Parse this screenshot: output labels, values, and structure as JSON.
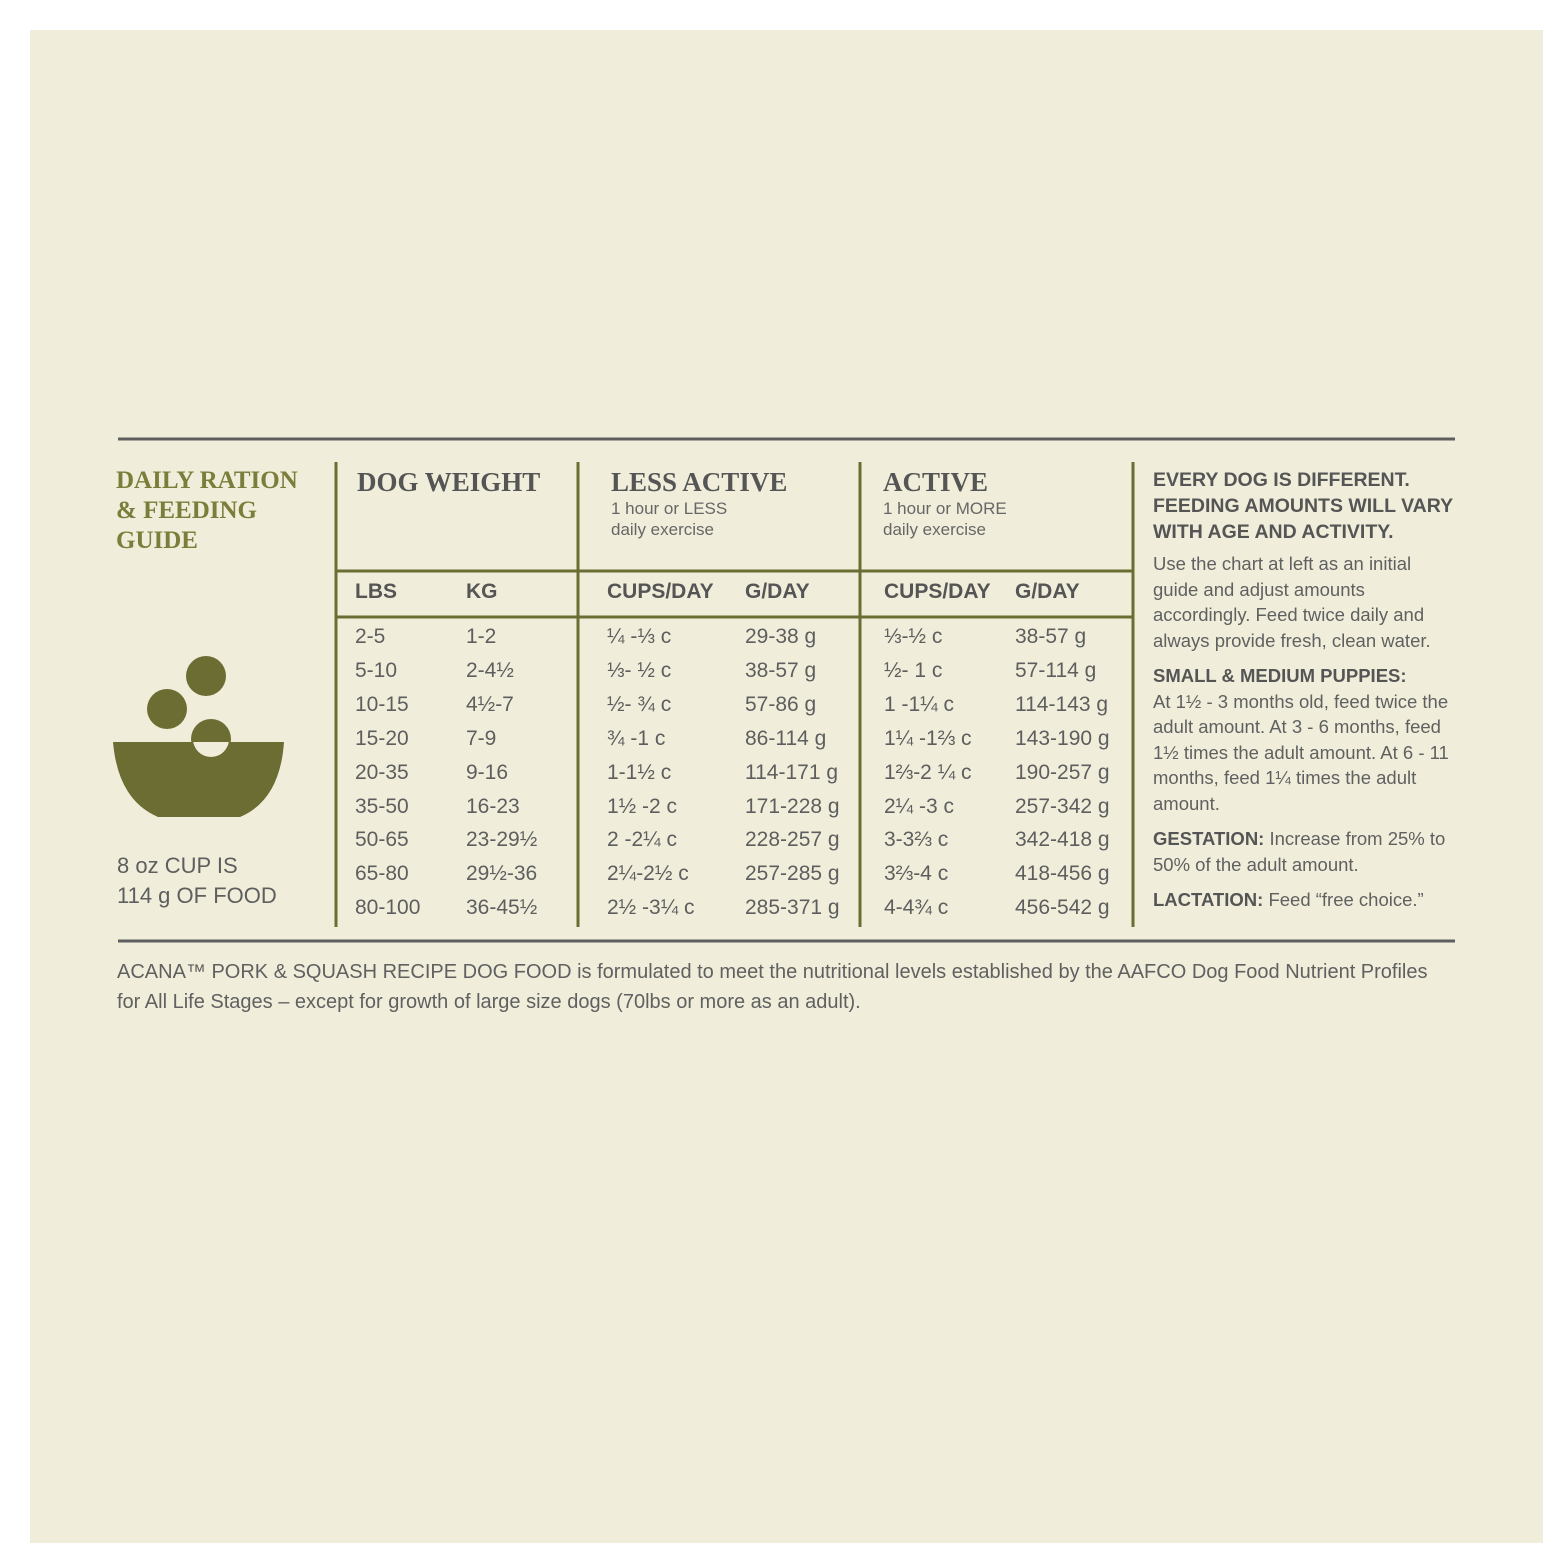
{
  "guide": {
    "title": [
      "DAILY RATION",
      "& FEEDING",
      "GUIDE"
    ],
    "cup_note": [
      "8 oz CUP IS",
      "114 g OF FOOD"
    ]
  },
  "table": {
    "groups": [
      {
        "title": "DOG WEIGHT"
      },
      {
        "title": "LESS ACTIVE",
        "subtitle": [
          "1 hour or LESS",
          "daily exercise"
        ]
      },
      {
        "title": "ACTIVE",
        "subtitle": [
          "1 hour or MORE",
          "daily exercise"
        ]
      }
    ],
    "columns": [
      "LBS",
      "KG",
      "CUPS/DAY",
      "G/DAY",
      "CUPS/DAY",
      "G/DAY"
    ],
    "rows": [
      [
        "2-5",
        "1-2",
        "¼ -⅓ c",
        "29-38 g",
        "⅓-½ c",
        "38-57 g"
      ],
      [
        "5-10",
        "2-4½",
        "⅓- ½ c",
        "38-57 g",
        "½- 1 c",
        "57-114 g"
      ],
      [
        "10-15",
        "4½-7",
        "½- ¾ c",
        "57-86 g",
        "1 -1¼ c",
        "114-143 g"
      ],
      [
        "15-20",
        "7-9",
        "¾ -1 c",
        "86-114 g",
        "1¼ -1⅔ c",
        "143-190 g"
      ],
      [
        "20-35",
        "9-16",
        "1-1½ c",
        "114-171 g",
        "1⅔-2 ¼ c",
        "190-257 g"
      ],
      [
        "35-50",
        "16-23",
        "1½ -2 c",
        "171-228 g",
        "2¼ -3 c",
        "257-342 g"
      ],
      [
        "50-65",
        "23-29½",
        "2 -2¼ c",
        "228-257 g",
        "3-3⅔ c",
        "342-418 g"
      ],
      [
        "65-80",
        "29½-36",
        "2¼-2½ c",
        "257-285 g",
        "3⅔-4 c",
        "418-456 g"
      ],
      [
        "80-100",
        "36-45½",
        "2½ -3¼ c",
        "285-371 g",
        "4-4¾ c",
        "456-542 g"
      ]
    ]
  },
  "notes": {
    "heading": "EVERY DOG IS DIFFERENT. FEEDING AMOUNTS WILL VARY WITH AGE AND ACTIVITY.",
    "intro": "Use the chart at left as an initial guide and adjust amounts accordingly. Feed twice daily and always provide fresh, clean water.",
    "sections": [
      {
        "label": "SMALL & MEDIUM PUPPIES:",
        "text": "At 1½ - 3 months old, feed twice the adult amount. At 3 - 6 months, feed 1½ times the adult amount. At 6 - 11 months, feed 1¼ times the adult amount."
      },
      {
        "label": "GESTATION:",
        "text": "Increase from 25% to 50% of the adult amount."
      },
      {
        "label": "LACTATION:",
        "text": "Feed “free choice.”"
      }
    ]
  },
  "footer": "ACANA™ PORK & SQUASH RECIPE DOG FOOD is formulated to meet the nutritional levels established by the AAFCO Dog Food Nutrient Profiles for All Life Stages – except for growth of large size dogs (70lbs or more as an adult)."
}
